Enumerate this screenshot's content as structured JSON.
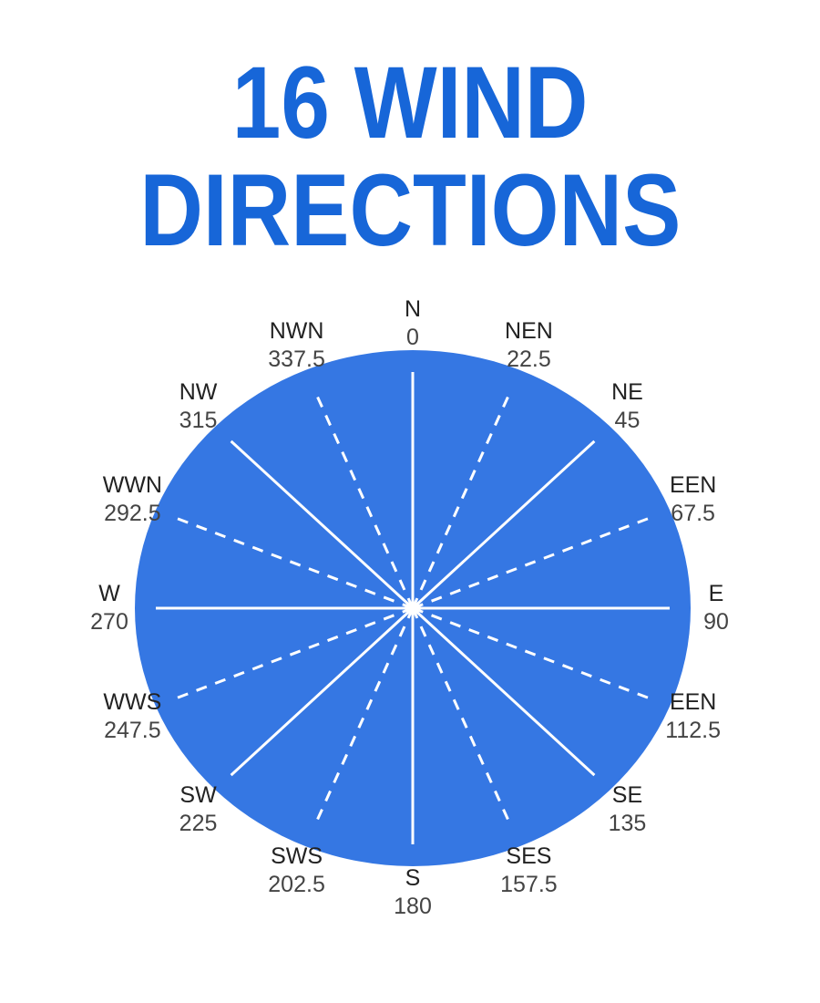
{
  "title": {
    "line1": "16 WIND",
    "line2": "DIRECTIONS"
  },
  "colors": {
    "title": "#1766d8",
    "circle": "#3577e3",
    "lines": "#ffffff"
  },
  "directions": [
    {
      "name": "N",
      "degrees": "0",
      "style": "solid"
    },
    {
      "name": "NEN",
      "degrees": "22.5",
      "style": "dashed"
    },
    {
      "name": "NE",
      "degrees": "45",
      "style": "solid"
    },
    {
      "name": "EEN",
      "degrees": "67.5",
      "style": "dashed"
    },
    {
      "name": "E",
      "degrees": "90",
      "style": "solid"
    },
    {
      "name": "EEN",
      "degrees": "112.5",
      "style": "dashed"
    },
    {
      "name": "SE",
      "degrees": "135",
      "style": "solid"
    },
    {
      "name": "SES",
      "degrees": "157.5",
      "style": "dashed"
    },
    {
      "name": "S",
      "degrees": "180",
      "style": "solid"
    },
    {
      "name": "SWS",
      "degrees": "202.5",
      "style": "dashed"
    },
    {
      "name": "SW",
      "degrees": "225",
      "style": "solid"
    },
    {
      "name": "WWS",
      "degrees": "247.5",
      "style": "dashed"
    },
    {
      "name": "W",
      "degrees": "270",
      "style": "solid"
    },
    {
      "name": "WWN",
      "degrees": "292.5",
      "style": "dashed"
    },
    {
      "name": "NW",
      "degrees": "315",
      "style": "solid"
    },
    {
      "name": "NWN",
      "degrees": "337.5",
      "style": "dashed"
    }
  ]
}
